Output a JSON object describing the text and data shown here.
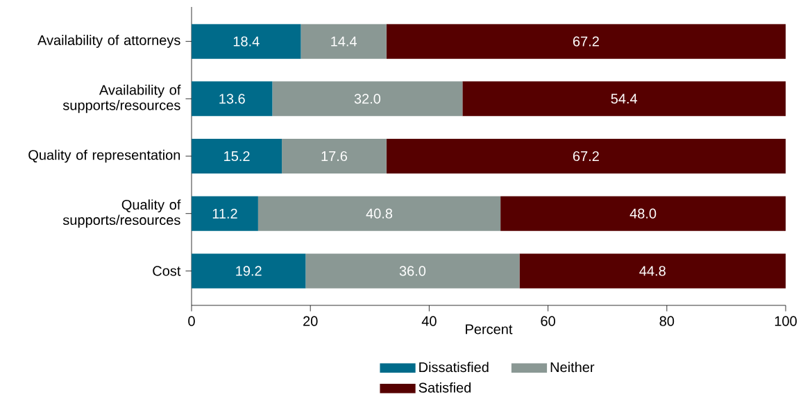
{
  "chart_data": {
    "type": "bar",
    "orientation": "horizontal",
    "stacked": true,
    "xlabel": "Percent",
    "categories": [
      "Availability of attorneys",
      "Availability of supports/resources",
      "Quality of representation",
      "Quality of supports/resources",
      "Cost"
    ],
    "series": [
      {
        "name": "Dissatisfied",
        "color": "#006b8a",
        "values": [
          18.4,
          13.6,
          15.2,
          11.2,
          19.2
        ],
        "value_labels": [
          "18.4",
          "13.6",
          "15.2",
          "11.2",
          "19.2"
        ]
      },
      {
        "name": "Neither",
        "color": "#8a9894",
        "values": [
          14.4,
          32.0,
          17.6,
          40.8,
          36.0
        ],
        "value_labels": [
          "14.4",
          "32.0",
          "17.6",
          "40.8",
          "36.0"
        ]
      },
      {
        "name": "Satisfied",
        "color": "#560000",
        "values": [
          67.2,
          54.4,
          67.2,
          48.0,
          44.8
        ],
        "value_labels": [
          "67.2",
          "54.4",
          "67.2",
          "48.0",
          "44.8"
        ]
      }
    ],
    "xlim": [
      0,
      100
    ],
    "xticks": [
      0,
      20,
      40,
      60,
      80,
      100
    ],
    "legend": "bottom",
    "grid": false
  }
}
